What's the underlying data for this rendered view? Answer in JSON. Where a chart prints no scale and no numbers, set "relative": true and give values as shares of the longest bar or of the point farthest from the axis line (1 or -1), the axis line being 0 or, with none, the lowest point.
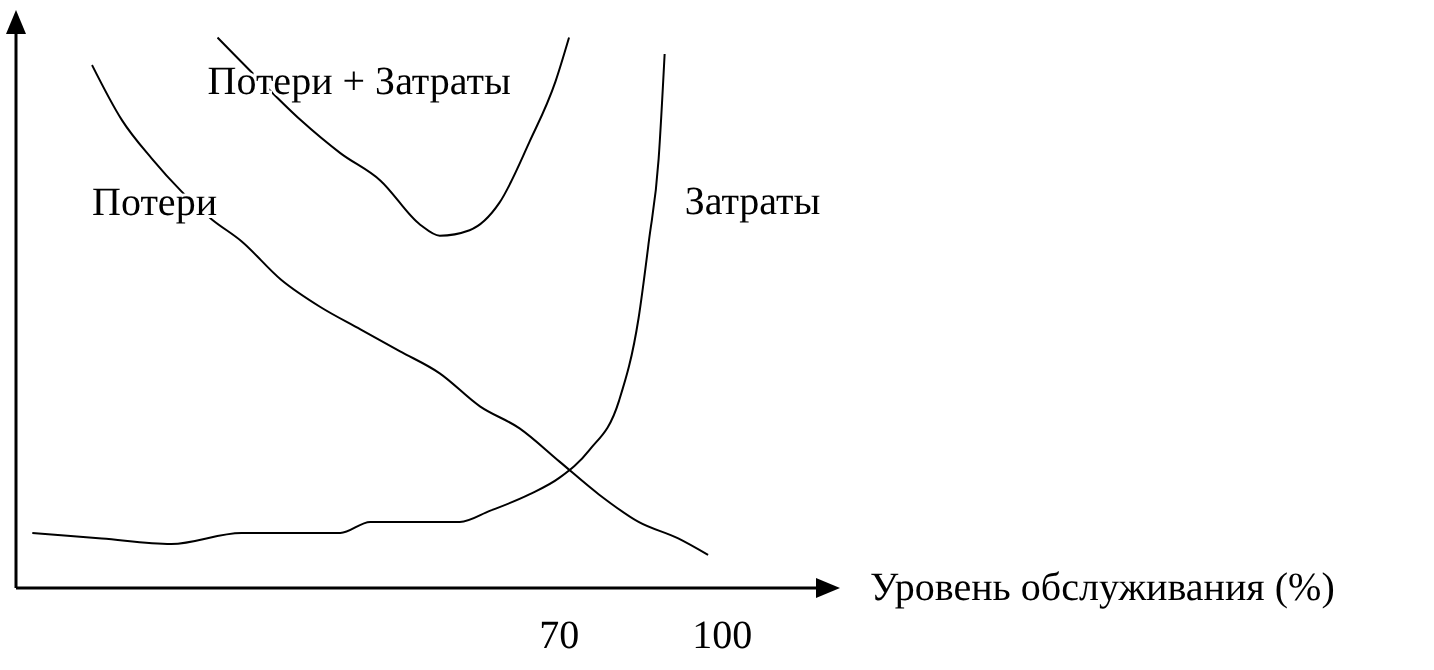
{
  "chart_data": {
    "type": "line",
    "relative": true,
    "xlabel": "Уровень обслуживания (%)",
    "xlim": [
      -30,
      118
    ],
    "xticks": [
      70,
      100
    ],
    "grid": false,
    "marker": "none",
    "line_style": "solid",
    "series": [
      {
        "name": "Потери",
        "color": "#000000",
        "x": [
          -16.0,
          -10.5,
          -5.0,
          0.5,
          6.0,
          11.5,
          18.8,
          26.1,
          33.4,
          40.7,
          48.0,
          55.4,
          62.7,
          70.0,
          77.3,
          84.6,
          91.9,
          97.4
        ],
        "values": [
          0.95,
          0.85,
          0.78,
          0.72,
          0.67,
          0.63,
          0.56,
          0.51,
          0.47,
          0.43,
          0.39,
          0.33,
          0.29,
          0.23,
          0.17,
          0.12,
          0.09,
          0.06
        ]
      },
      {
        "name": "Затраты",
        "color": "#000000",
        "x": [
          -27.0,
          -14.2,
          -1.4,
          11.5,
          29.7,
          35.2,
          51.7,
          57.2,
          64.5,
          70.0,
          75.5,
          81.0,
          84.6,
          86.5,
          88.3,
          89.4
        ],
        "values": [
          0.1,
          0.09,
          0.08,
          0.1,
          0.1,
          0.12,
          0.12,
          0.14,
          0.17,
          0.2,
          0.25,
          0.34,
          0.49,
          0.63,
          0.78,
          0.97
        ]
      },
      {
        "name": "Потери + Затраты",
        "color": "#000000",
        "x": [
          7.1,
          15.1,
          22.4,
          29.7,
          37.1,
          44.4,
          48.0,
          53.5,
          59.0,
          64.5,
          69.3,
          71.8
        ],
        "values": [
          1.0,
          0.92,
          0.85,
          0.79,
          0.74,
          0.66,
          0.64,
          0.65,
          0.7,
          0.81,
          0.92,
          1.0
        ]
      }
    ]
  }
}
